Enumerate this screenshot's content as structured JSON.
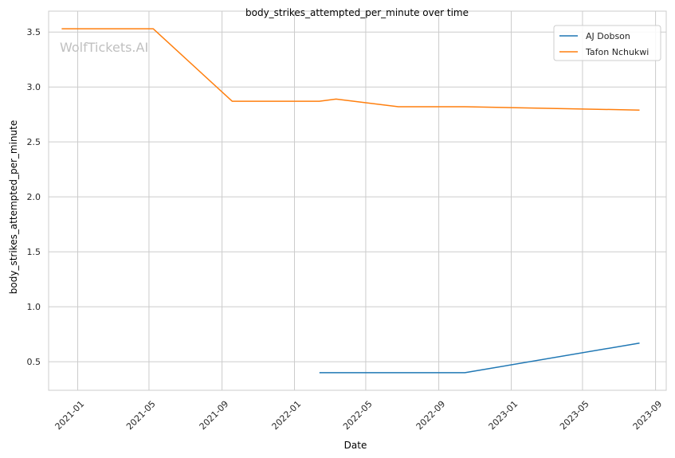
{
  "chart_data": {
    "type": "line",
    "title": "body_strikes_attempted_per_minute over time",
    "xlabel": "Date",
    "ylabel": "body_strikes_attempted_per_minute",
    "watermark": "WolfTickets.AI",
    "xlim": [
      "2020-11-13",
      "2023-09-19"
    ],
    "ylim": [
      0.24,
      3.69
    ],
    "x_ticks": [
      "2021-01-01",
      "2021-05-01",
      "2021-09-01",
      "2022-01-01",
      "2022-05-01",
      "2022-09-01",
      "2023-01-01",
      "2023-05-01",
      "2023-09-01"
    ],
    "x_tick_labels": [
      "2021-01",
      "2021-05",
      "2021-09",
      "2022-01",
      "2022-05",
      "2022-09",
      "2023-01",
      "2023-05",
      "2023-09"
    ],
    "y_ticks": [
      0.5,
      1.0,
      1.5,
      2.0,
      2.5,
      3.0,
      3.5
    ],
    "y_tick_labels": [
      "0.5",
      "1.0",
      "1.5",
      "2.0",
      "2.5",
      "3.0",
      "3.5"
    ],
    "grid": true,
    "legend_position": "top-right",
    "series": [
      {
        "name": "AJ Dobson",
        "color": "#1f77b4",
        "x": [
          "2022-02-12",
          "2022-10-15",
          "2023-08-05"
        ],
        "y": [
          0.4,
          0.4,
          0.67
        ]
      },
      {
        "name": "Tafon Nchukwi",
        "color": "#ff7f0e",
        "x": [
          "2020-12-05",
          "2021-05-08",
          "2021-09-18",
          "2022-02-12",
          "2022-03-12",
          "2022-06-25",
          "2022-10-15",
          "2023-08-05"
        ],
        "y": [
          3.53,
          3.53,
          2.87,
          2.87,
          2.89,
          2.82,
          2.82,
          2.79
        ]
      }
    ]
  }
}
